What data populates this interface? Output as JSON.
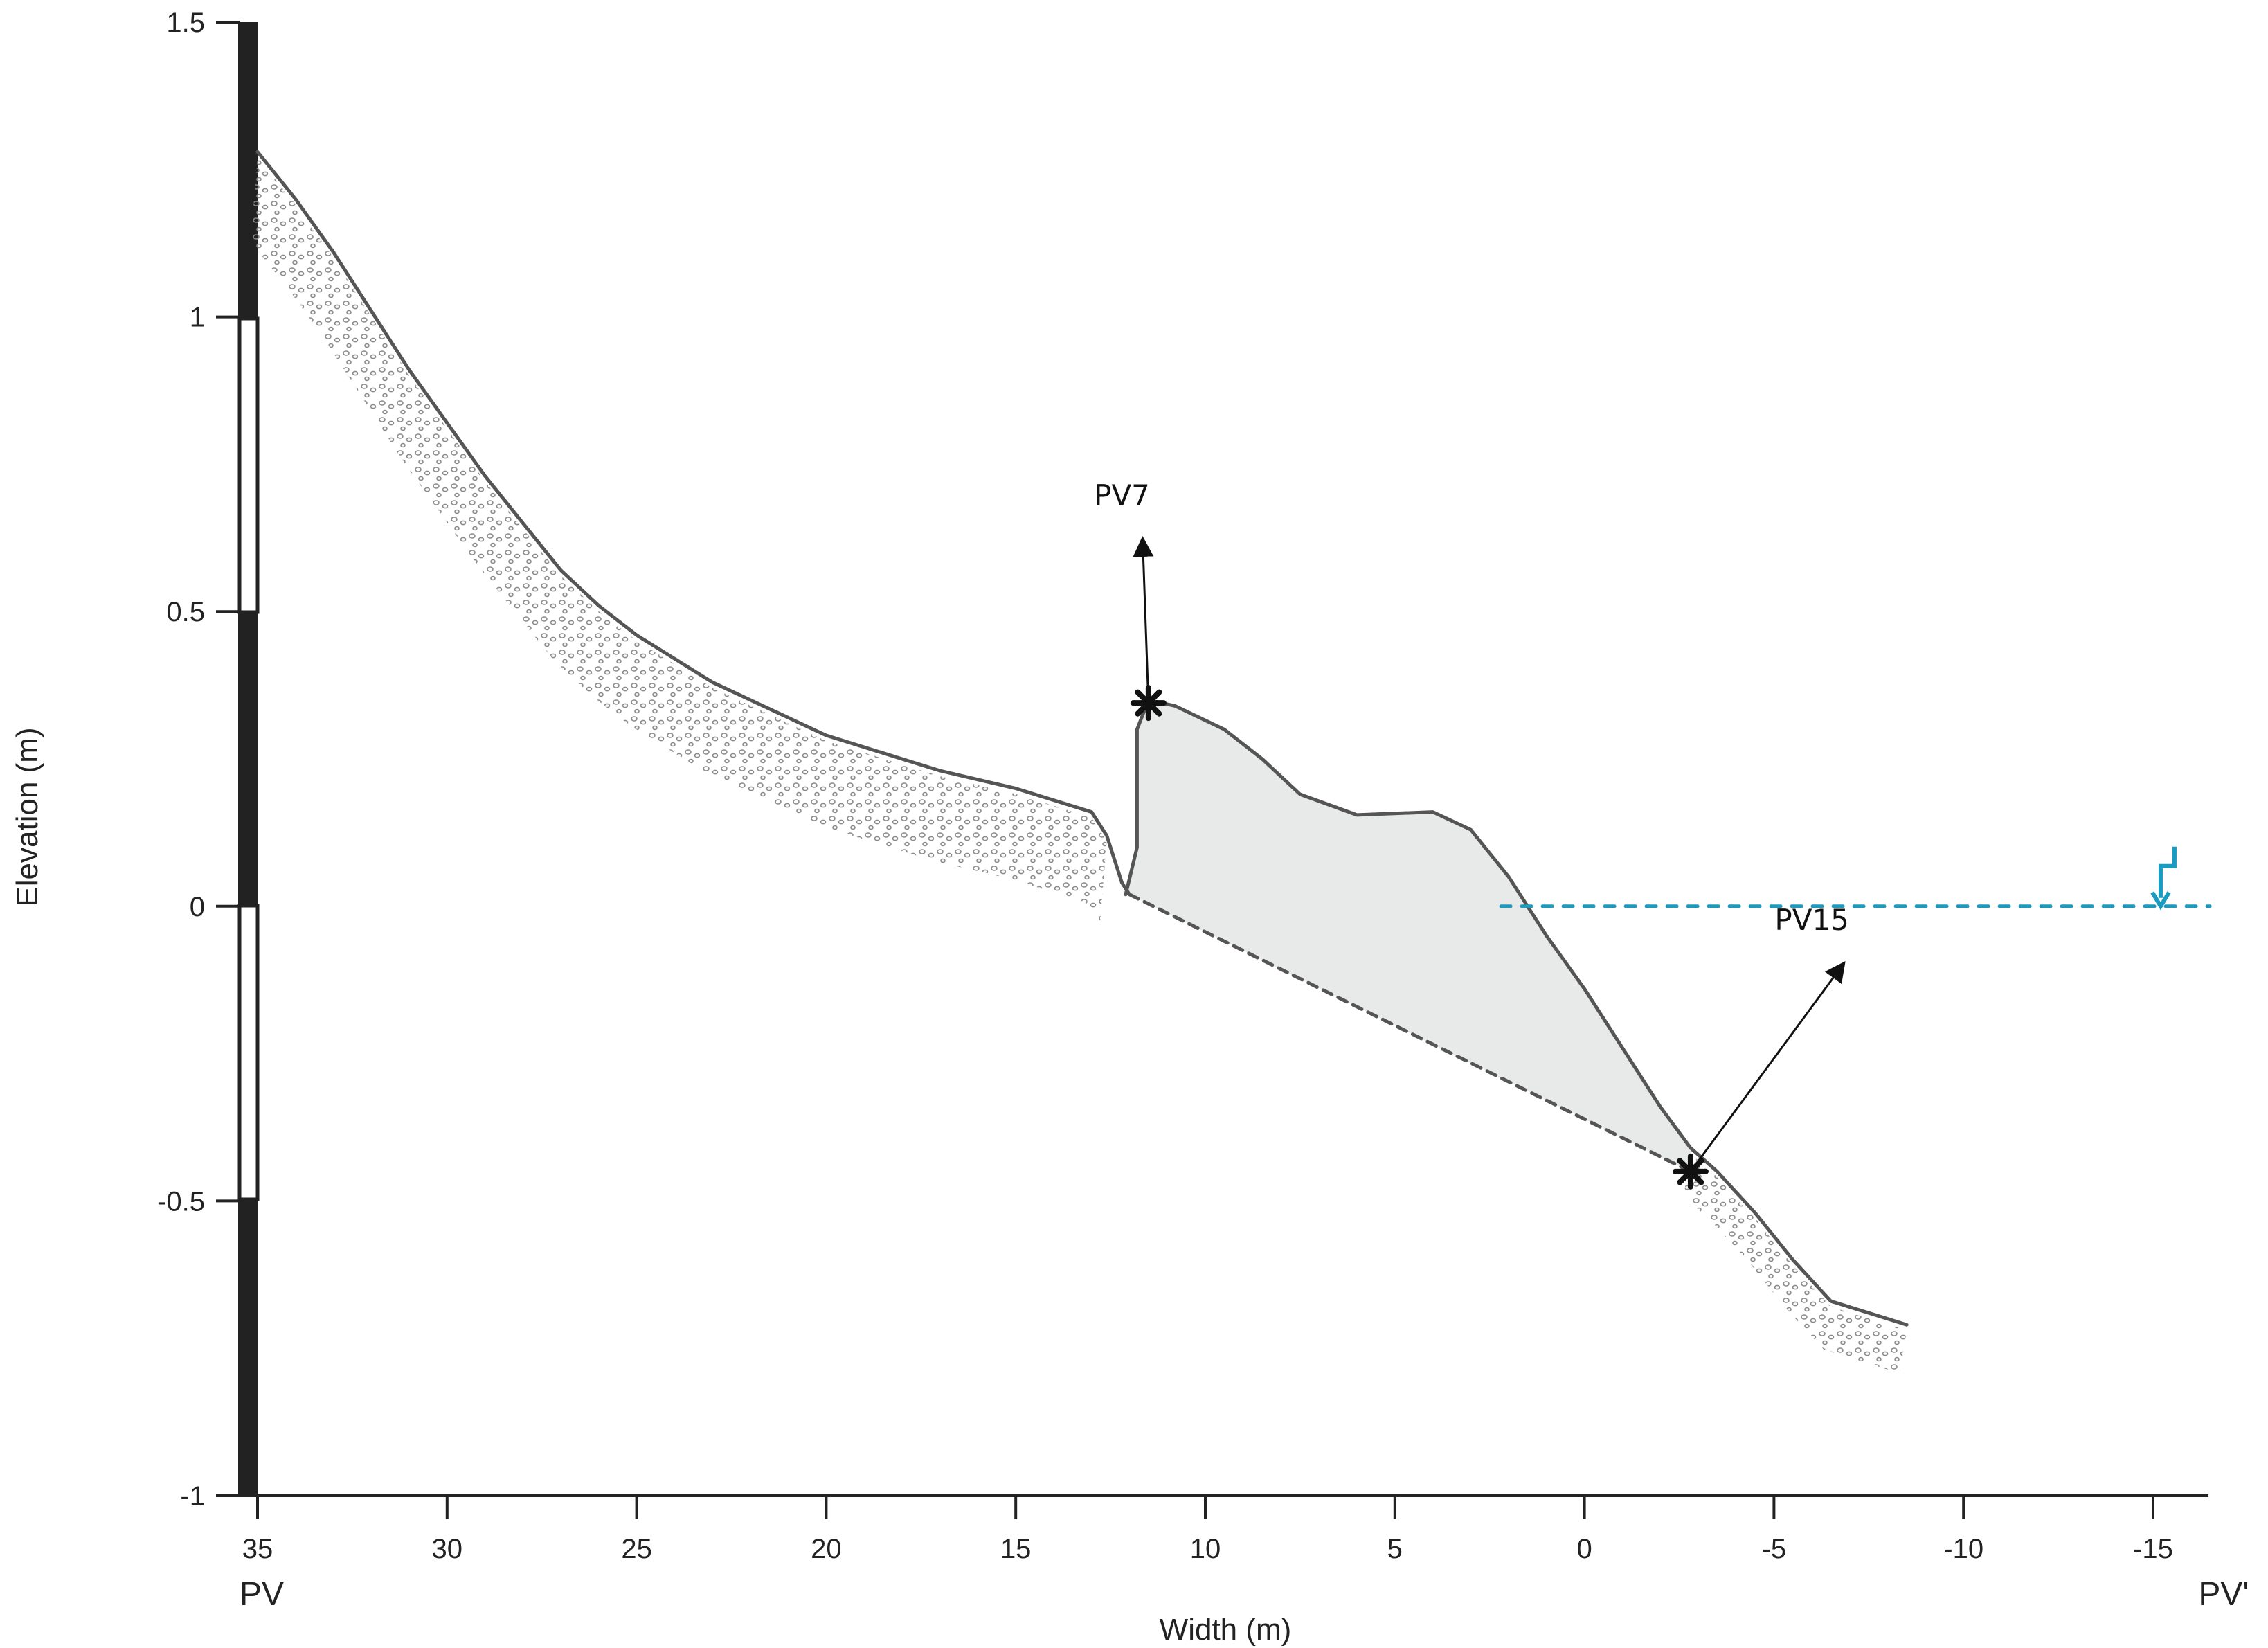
{
  "chart_data": {
    "type": "line",
    "title": "",
    "xlabel": "Width (m)",
    "ylabel": "Elevation (m)",
    "xlim": [
      36,
      -16.5
    ],
    "ylim": [
      -1,
      1.5
    ],
    "x_reversed": true,
    "xticks": [
      35,
      30,
      25,
      20,
      15,
      10,
      5,
      0,
      -5,
      -10,
      -15
    ],
    "xtick_labels": [
      "35",
      "30",
      "25",
      "20",
      "15",
      "10",
      "5",
      "0",
      "-5",
      "-10",
      "-15"
    ],
    "yticks": [
      1.5,
      1,
      0.5,
      0,
      -0.5,
      -1
    ],
    "ytick_labels": [
      "1.5",
      "1",
      "0.5",
      "0",
      "-0.5",
      "-1"
    ],
    "left_end_label": "PV",
    "right_end_label": "PV'",
    "grid": false,
    "series": [
      {
        "role": "beach-profile",
        "style": "solid",
        "color": "#555555",
        "points": [
          [
            35,
            1.28
          ],
          [
            34,
            1.2
          ],
          [
            33,
            1.11
          ],
          [
            32,
            1.01
          ],
          [
            31,
            0.91
          ],
          [
            30,
            0.82
          ],
          [
            29,
            0.73
          ],
          [
            28,
            0.65
          ],
          [
            27,
            0.57
          ],
          [
            26,
            0.51
          ],
          [
            25,
            0.46
          ],
          [
            24,
            0.42
          ],
          [
            23,
            0.38
          ],
          [
            22,
            0.35
          ],
          [
            21,
            0.32
          ],
          [
            20,
            0.29
          ],
          [
            19,
            0.27
          ],
          [
            18,
            0.25
          ],
          [
            17,
            0.23
          ],
          [
            16,
            0.215
          ],
          [
            15,
            0.2
          ],
          [
            14,
            0.18
          ],
          [
            13,
            0.16
          ],
          [
            12.6,
            0.12
          ],
          [
            12.2,
            0.04
          ],
          [
            12.0,
            0.02
          ]
        ]
      },
      {
        "role": "deposit-profile",
        "style": "solid",
        "color": "#555555",
        "points": [
          [
            12.1,
            0.02
          ],
          [
            11.8,
            0.1
          ],
          [
            11.8,
            0.3
          ],
          [
            11.5,
            0.35
          ],
          [
            10.8,
            0.34
          ],
          [
            9.5,
            0.3
          ],
          [
            8.5,
            0.25
          ],
          [
            7.5,
            0.19
          ],
          [
            6,
            0.155
          ],
          [
            4,
            0.16
          ],
          [
            3,
            0.13
          ],
          [
            2,
            0.05
          ],
          [
            1,
            -0.05
          ],
          [
            0,
            -0.14
          ],
          [
            -1,
            -0.24
          ],
          [
            -2,
            -0.34
          ],
          [
            -2.8,
            -0.41
          ],
          [
            -3.5,
            -0.45
          ],
          [
            -4.5,
            -0.52
          ],
          [
            -5.5,
            -0.6
          ],
          [
            -6.5,
            -0.67
          ],
          [
            -7.5,
            -0.69
          ],
          [
            -8.5,
            -0.71
          ]
        ]
      },
      {
        "role": "deposit-base",
        "style": "dashed",
        "color": "#555555",
        "points": [
          [
            12.0,
            0.02
          ],
          [
            -2.8,
            -0.45
          ]
        ]
      },
      {
        "role": "sea-level",
        "style": "dotted",
        "color": "#1a9bc0",
        "points": [
          [
            2.2,
            0
          ],
          [
            -16.5,
            0
          ]
        ]
      }
    ],
    "annotations": [
      {
        "text": "PV7",
        "marker_x": 11.5,
        "marker_y": 0.345,
        "text_x": 12.2,
        "text_y": 0.68
      },
      {
        "text": "PV15",
        "marker_x": -2.8,
        "marker_y": -0.45,
        "text_x": -6.0,
        "text_y": -0.04
      }
    ],
    "sea_level_symbol": {
      "x": -15.2,
      "y": 0,
      "color": "#1a9bc0"
    }
  }
}
